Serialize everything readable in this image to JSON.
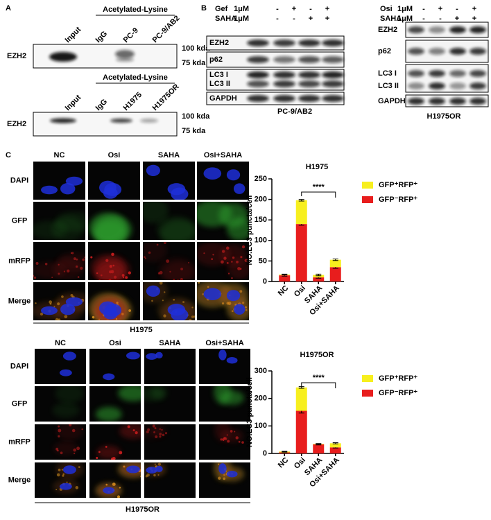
{
  "panels": {
    "a": {
      "label": "A",
      "top": {
        "header": "Acetylated-Lysine",
        "lanes": [
          "Input",
          "IgG",
          "PC-9",
          "PC-9/AB2"
        ],
        "row": "EZH2",
        "markers": [
          "100 kda",
          "75 kda"
        ]
      },
      "bottom": {
        "header": "Acetylated-Lysine",
        "lanes": [
          "Input",
          "IgG",
          "H1975",
          "H1975OR"
        ],
        "row": "EZH2",
        "markers": [
          "100 kda",
          "75 kda"
        ]
      }
    },
    "b": {
      "label": "B",
      "left": {
        "treatments": [
          {
            "name": "Gef",
            "dose": "1μM",
            "signs": [
              "-",
              "+",
              "-",
              "+"
            ]
          },
          {
            "name": "SAHA",
            "dose": "1μM",
            "signs": [
              "-",
              "-",
              "+",
              "+"
            ]
          }
        ],
        "rows": [
          "EZH2",
          "p62",
          "LC3 I",
          "LC3 II",
          "GAPDH"
        ],
        "cell_line": "PC-9/AB2"
      },
      "right": {
        "treatments": [
          {
            "name": "Osi",
            "dose": "1μM",
            "signs": [
              "-",
              "+",
              "-",
              "+"
            ]
          },
          {
            "name": "SAHA",
            "dose": "1μM",
            "signs": [
              "-",
              "-",
              "+",
              "+"
            ]
          }
        ],
        "rows": [
          "EZH2",
          "p62",
          "LC3 I",
          "LC3 II",
          "GAPDH"
        ],
        "cell_line": "H1975OR"
      }
    },
    "c": {
      "label": "C",
      "top": {
        "columns": [
          "NC",
          "Osi",
          "SAHA",
          "Osi+SAHA"
        ],
        "rows": [
          "DAPI",
          "GFP",
          "mRFP",
          "Merge"
        ],
        "cell_line": "H1975"
      },
      "bottom": {
        "columns": [
          "NC",
          "Osi",
          "SAHA",
          "Osi+SAHA"
        ],
        "rows": [
          "DAPI",
          "GFP",
          "mRFP",
          "Merge"
        ],
        "cell_line": "H1975OR"
      }
    }
  },
  "chart_data": [
    {
      "type": "bar",
      "stacked": true,
      "title": "H1975",
      "ylabel": "NO.LC3 puncta/cell",
      "categories": [
        "NC",
        "Osi",
        "SAHA",
        "Osi+SAHA"
      ],
      "series": [
        {
          "name": "GFP⁺RFP⁺",
          "color": "#f7ef1e",
          "values": [
            2,
            58,
            6,
            18
          ],
          "errors": [
            1,
            2,
            2,
            2
          ]
        },
        {
          "name": "GFP⁻RFP⁺",
          "color": "#e81d1d",
          "values": [
            15,
            140,
            10,
            35
          ],
          "errors": [
            2,
            3,
            2,
            3
          ]
        }
      ],
      "ylim": [
        0,
        250
      ],
      "yticks": [
        0,
        50,
        100,
        150,
        200,
        250
      ],
      "significance": "****"
    },
    {
      "type": "bar",
      "stacked": true,
      "title": "H1975OR",
      "ylabel": "NO.LC3 puncta/cell",
      "categories": [
        "NC",
        "Osi",
        "SAHA",
        "Osi+SAHA"
      ],
      "series": [
        {
          "name": "GFP⁺RFP⁺",
          "color": "#f7ef1e",
          "values": [
            3,
            85,
            2,
            15
          ],
          "errors": [
            1,
            3,
            1,
            2
          ]
        },
        {
          "name": "GFP⁻RFP⁺",
          "color": "#e81d1d",
          "values": [
            4,
            155,
            33,
            22
          ],
          "errors": [
            1,
            8,
            2,
            2
          ]
        }
      ],
      "ylim": [
        0,
        300
      ],
      "yticks": [
        0,
        100,
        200,
        300
      ],
      "significance": "****"
    }
  ]
}
